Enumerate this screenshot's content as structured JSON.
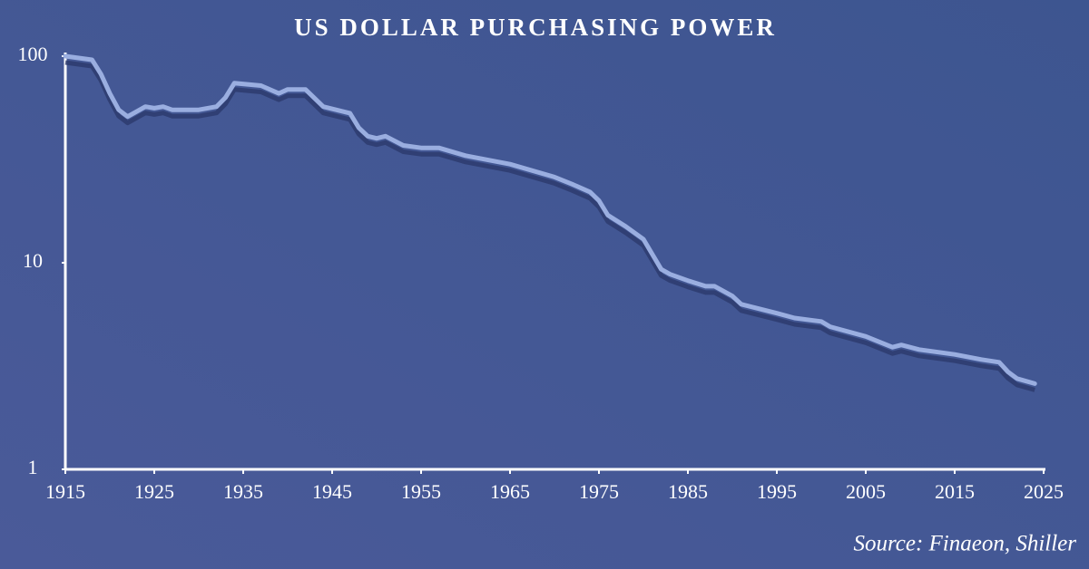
{
  "chart_data": {
    "type": "line",
    "title": "US DOLLAR PURCHASING POWER",
    "source": "Source: Finaeon, Shiller",
    "x": [
      1915,
      1918,
      1919,
      1920,
      1921,
      1922,
      1924,
      1925,
      1926,
      1927,
      1930,
      1932,
      1933,
      1934,
      1937,
      1939,
      1940,
      1942,
      1944,
      1947,
      1948,
      1949,
      1950,
      1951,
      1953,
      1955,
      1957,
      1960,
      1965,
      1970,
      1972,
      1974,
      1975,
      1976,
      1978,
      1980,
      1981,
      1982,
      1983,
      1985,
      1987,
      1988,
      1990,
      1991,
      1995,
      1997,
      2000,
      2001,
      2005,
      2008,
      2009,
      2011,
      2015,
      2018,
      2020,
      2021,
      2022,
      2024
    ],
    "series": [
      {
        "name": "Purchasing power",
        "color": "#9aaee0",
        "values": [
          100,
          96,
          82,
          66,
          55,
          51,
          57,
          56,
          57,
          55,
          55,
          57,
          63,
          74,
          72,
          66,
          69,
          69,
          57,
          53,
          45,
          41,
          40,
          41,
          37,
          36,
          36,
          33,
          30,
          26,
          24,
          22,
          20,
          17,
          15,
          13,
          11,
          9.3,
          8.8,
          8.2,
          7.7,
          7.7,
          6.9,
          6.3,
          5.7,
          5.4,
          5.2,
          4.9,
          4.4,
          3.9,
          4.0,
          3.8,
          3.6,
          3.4,
          3.3,
          2.96,
          2.75,
          2.6
        ]
      }
    ],
    "xlim": [
      1915,
      2025
    ],
    "xticks": [
      1915,
      1925,
      1935,
      1945,
      1955,
      1965,
      1975,
      1985,
      1995,
      2005,
      2015,
      2025
    ],
    "ylim": [
      1,
      100
    ],
    "yticks": [
      1,
      10,
      100
    ],
    "log_y": true
  }
}
